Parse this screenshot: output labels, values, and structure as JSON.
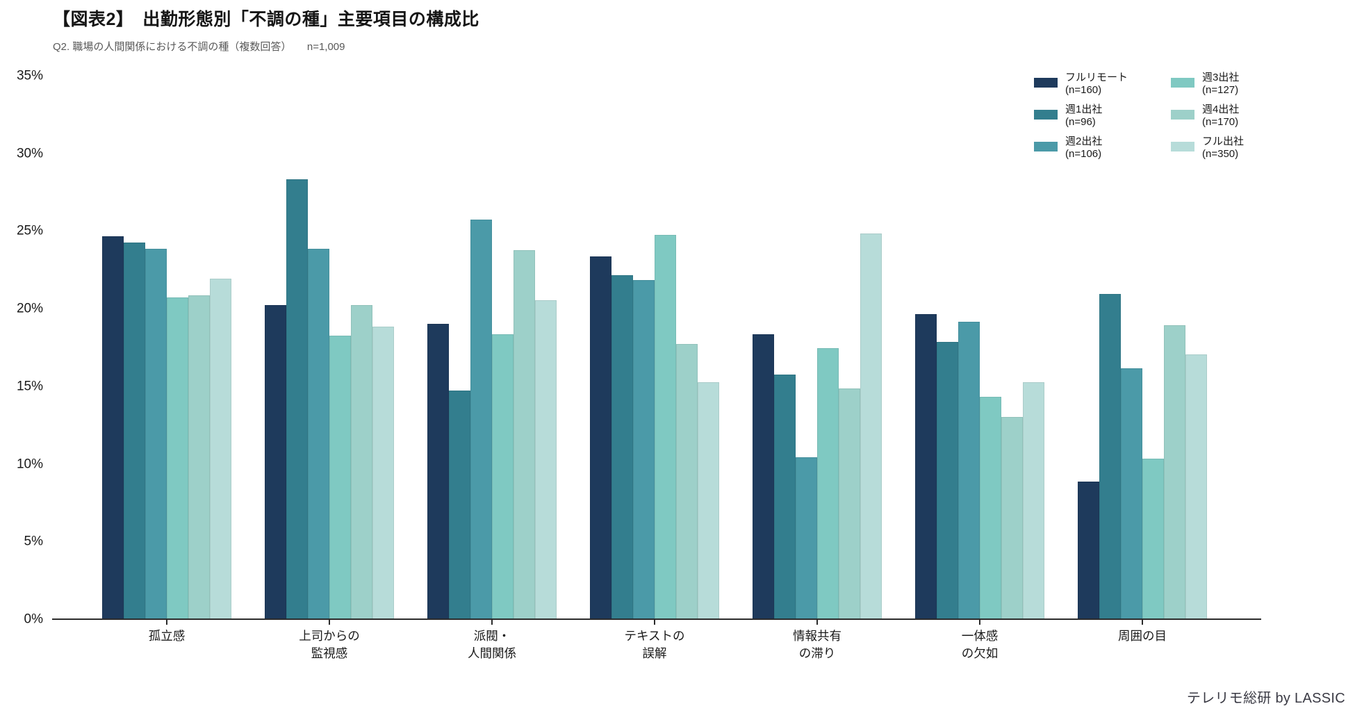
{
  "header": {
    "title": "【図表2】　出勤形態別「不調の種」主要項目の構成比",
    "subtitle": "Q2. 職場の人間関係における不調の種（複数回答）　　n=1,009"
  },
  "footer": {
    "credit": "テレリモ総研 by LASSIC"
  },
  "chart_data": {
    "type": "bar",
    "title": "【図表2】　出勤形態別「不調の種」主要項目の構成比",
    "subtitle": "Q2. 職場の人間関係における不調の種（複数回答）　n=1,009",
    "categories": [
      "孤立感",
      "上司からの\n監視感",
      "派閥・\n人間関係",
      "テキストの\n誤解",
      "情報共有\nの滞り",
      "一体感\nの欠如",
      "周囲の目"
    ],
    "series": [
      {
        "name": "フルリモート",
        "count_label": "(n=160)",
        "color": "#1e3a5c",
        "values": [
          24.6,
          20.2,
          19.0,
          23.3,
          18.3,
          19.6,
          8.8
        ]
      },
      {
        "name": "週1出社",
        "count_label": "(n=96)",
        "color": "#337e8e",
        "values": [
          24.2,
          28.3,
          14.7,
          22.1,
          15.7,
          17.8,
          20.9
        ]
      },
      {
        "name": "週2出社",
        "count_label": "(n=106)",
        "color": "#4b9aa8",
        "values": [
          23.8,
          23.8,
          25.7,
          21.8,
          10.4,
          19.1,
          16.1
        ]
      },
      {
        "name": "週3出社",
        "count_label": "(n=127)",
        "color": "#7fc9c2",
        "values": [
          20.7,
          18.2,
          18.3,
          24.7,
          17.4,
          14.3,
          10.3
        ]
      },
      {
        "name": "週4出社",
        "count_label": "(n=170)",
        "color": "#9dd0c9",
        "values": [
          20.8,
          20.2,
          23.7,
          17.7,
          14.8,
          13.0,
          18.9
        ]
      },
      {
        "name": "フル出社",
        "count_label": "(n=350)",
        "color": "#b7dcd9",
        "values": [
          21.9,
          18.8,
          20.5,
          15.2,
          24.8,
          15.2,
          17.0
        ]
      }
    ],
    "y_axis": {
      "min": 0,
      "max": 35,
      "step": 5,
      "tick_labels": [
        "0%",
        "5%",
        "10%",
        "15%",
        "20%",
        "25%",
        "30%",
        "35%"
      ]
    },
    "grid": false,
    "legend_position": "top-right"
  }
}
